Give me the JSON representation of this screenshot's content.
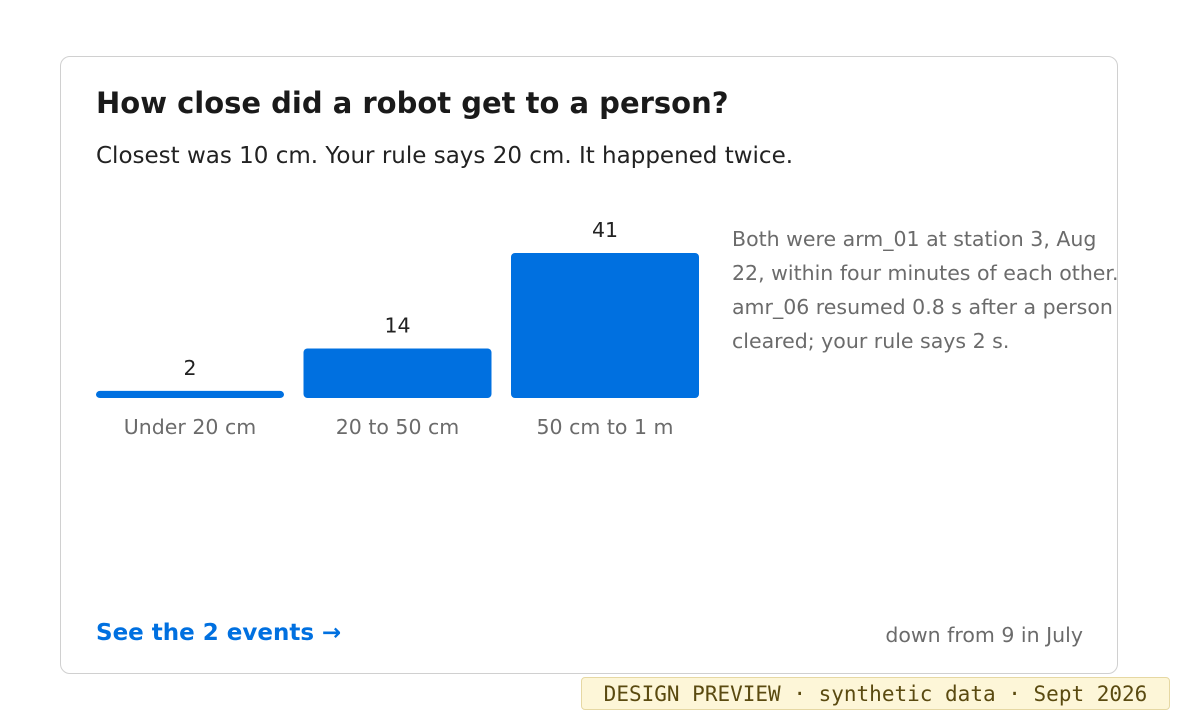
{
  "card": {
    "title": "How close did a robot get to a person?",
    "subtitle": "Closest was 10 cm. Your rule says 20 cm. It happened twice.",
    "note": "Both were arm_01 at station 3, Aug 22, within four minutes of each other. amr_06 resumed 0.8 s after a person cleared; your rule says 2 s.",
    "link": "See the 2 events →",
    "footnote": "down from 9 in July"
  },
  "chart_data": {
    "type": "bar",
    "categories": [
      "Under 20 cm",
      "20 to 50 cm",
      "50 cm to 1 m"
    ],
    "values": [
      2,
      14,
      41
    ],
    "color": "#0070e0"
  },
  "badge": "DESIGN PREVIEW · synthetic data · Sept 2026"
}
